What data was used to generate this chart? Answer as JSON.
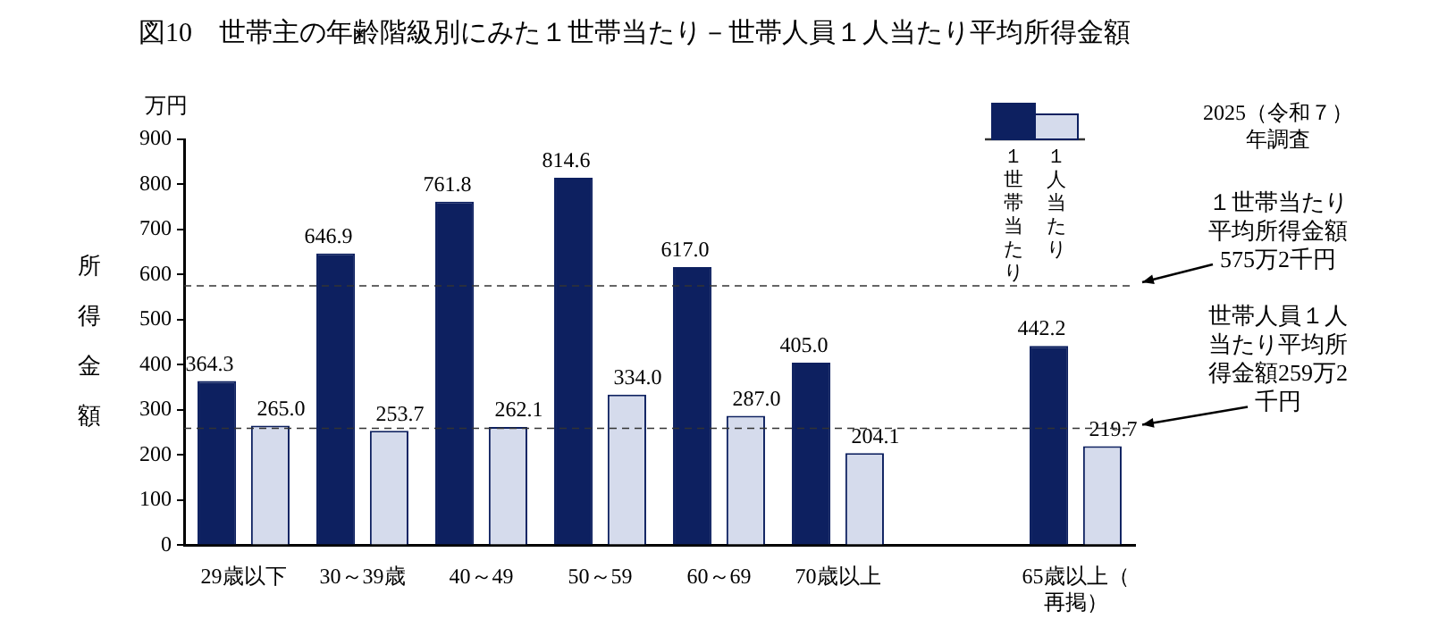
{
  "chart_data": {
    "type": "bar",
    "title": "図10　世帯主の年齢階級別にみた１世帯当たり－世帯人員１人当たり平均所得金額",
    "ylabel": "所得金額",
    "annotations": [
      "万円",
      "2025（令和７）年調査"
    ],
    "categories": [
      "29歳以下",
      "30～39歳",
      "40～49",
      "50～59",
      "60～69",
      "70歳以上",
      null,
      "65歳以上（再掲）"
    ],
    "series": [
      {
        "name": "１世帯当たり",
        "color": "#0d2060",
        "values": [
          364.3,
          646.9,
          761.8,
          814.6,
          617.0,
          405.0,
          null,
          442.2
        ],
        "value_labels": [
          "364.3",
          "646.9",
          "761.8",
          "814.6",
          "617.0",
          "405.0",
          null,
          "442.2"
        ]
      },
      {
        "name": "１人当たり",
        "color": "#d5dbec",
        "values": [
          265.0,
          253.7,
          262.1,
          334.0,
          287.0,
          204.1,
          null,
          219.7
        ],
        "value_labels": [
          "265.0",
          "253.7",
          "262.1",
          "334.0",
          "287.0",
          "204.1",
          null,
          "219.7"
        ]
      }
    ],
    "ylim": [
      0,
      900
    ],
    "yticks": [
      0,
      100,
      200,
      300,
      400,
      500,
      600,
      700,
      800,
      900
    ],
    "legend": "top right",
    "ref_lines": [
      {
        "axis": "y",
        "value": 575.2,
        "label": "１世帯当たり平均所得金額575万2千円",
        "line_style": "dashed"
      },
      {
        "axis": "y",
        "value": 259.2,
        "label": "世帯人員１人当たり平均所得金額259万2千円",
        "line_style": "dashed"
      }
    ]
  }
}
